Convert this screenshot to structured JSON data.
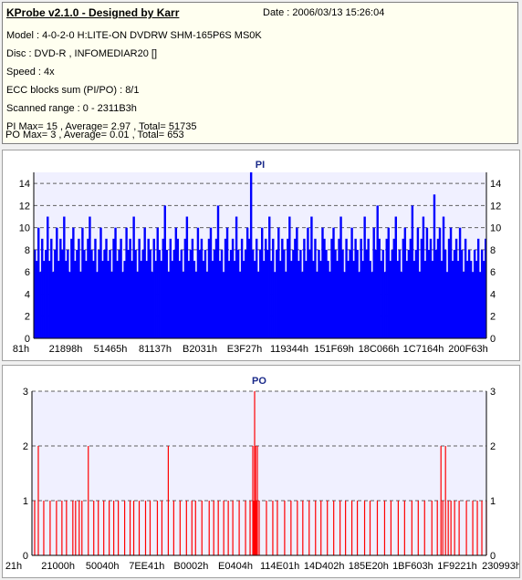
{
  "header": {
    "title": "KProbe v2.1.0 - Designed by Karr",
    "date": "Date : 2006/03/13 15:26:04",
    "lines": [
      "Model : 4-0-2-0 H:LITE-ON DVDRW SHM-165P6S MS0K",
      "Disc : DVD-R , INFOMEDIAR20 []",
      "Speed : 4x",
      "ECC blocks sum (PI/PO) : 8/1",
      "Scanned range : 0 - 2311B3h",
      "PI Max= 15 , Average= 2.97 , Total= 51735",
      "PO Max= 3 , Average= 0.01 , Total= 653"
    ]
  },
  "colors": {
    "pi": "#0000ff",
    "po": "#ff0000",
    "plot_bg": "#f0f0ff",
    "grid": "#606060",
    "title": "#1a2a8a"
  },
  "chart_data": [
    {
      "type": "bar",
      "title": "PI",
      "ylim": [
        0,
        15
      ],
      "yticks": [
        0,
        2,
        4,
        6,
        8,
        10,
        12,
        14
      ],
      "xtick_labels": [
        "81h",
        "21898h",
        "51465h",
        "81137h",
        "B2031h",
        "E3F27h",
        "119344h",
        "151F69h",
        "18C066h",
        "1C7164h",
        "200F63h"
      ],
      "grid": true,
      "max": 15,
      "average": 2.97,
      "total": 51735,
      "series": [
        {
          "values": [
            8,
            7,
            10,
            6,
            9,
            7,
            8,
            11,
            7,
            9,
            6,
            8,
            10,
            7,
            9,
            8,
            11,
            7,
            8,
            6,
            9,
            10,
            7,
            8,
            9,
            6,
            10,
            8,
            7,
            9,
            11,
            8,
            7,
            9,
            6,
            8,
            10,
            7,
            8,
            9,
            7,
            8,
            6,
            9,
            10,
            7,
            8,
            9,
            6,
            7,
            10,
            8,
            9,
            7,
            11,
            8,
            6,
            9,
            7,
            8,
            10,
            7,
            9,
            8,
            6,
            9,
            7,
            10,
            8,
            7,
            9,
            12,
            8,
            6,
            9,
            7,
            8,
            10,
            9,
            7,
            8,
            6,
            9,
            11,
            7,
            8,
            9,
            7,
            6,
            10,
            8,
            9,
            7,
            8,
            6,
            9,
            10,
            7,
            8,
            9,
            12,
            7,
            8,
            6,
            9,
            10,
            7,
            8,
            9,
            7,
            11,
            8,
            6,
            9,
            7,
            8,
            10,
            9,
            15,
            8,
            7,
            9,
            6,
            8,
            10,
            7,
            9,
            8,
            11,
            7,
            9,
            6,
            8,
            10,
            7,
            9,
            8,
            6,
            9,
            11,
            7,
            8,
            9,
            10,
            7,
            8,
            6,
            9,
            7,
            10,
            8,
            11,
            7,
            9,
            6,
            8,
            7,
            10,
            9,
            8,
            7,
            6,
            9,
            10,
            8,
            7,
            9,
            11,
            8,
            6,
            9,
            7,
            8,
            10,
            7,
            9,
            8,
            6,
            9,
            7,
            11,
            8,
            9,
            7,
            6,
            10,
            8,
            12,
            9,
            7,
            8,
            6,
            9,
            10,
            7,
            8,
            9,
            11,
            7,
            8,
            6,
            9,
            10,
            7,
            8,
            9,
            12,
            7,
            8,
            10,
            6,
            9,
            11,
            7,
            10,
            8,
            9,
            7,
            13,
            8,
            9,
            10,
            7,
            11,
            8,
            6,
            9,
            10,
            7,
            8,
            9,
            7,
            10,
            8,
            6,
            9,
            7,
            8,
            7,
            6,
            8,
            7,
            9,
            6,
            8,
            7,
            9
          ]
        }
      ]
    },
    {
      "type": "bar",
      "title": "PO",
      "ylim": [
        0,
        3
      ],
      "yticks": [
        0,
        1,
        2,
        3
      ],
      "xtick_labels": [
        "21h",
        "21000h",
        "50040h",
        "7EE41h",
        "B0002h",
        "E0404h",
        "114E01h",
        "14D402h",
        "185E20h",
        "1BF603h",
        "1F9221h",
        "230993h"
      ],
      "grid": true,
      "max": 3,
      "average": 0.01,
      "total": 653,
      "series": [
        {
          "x": [
            3,
            7,
            13,
            20,
            27,
            33,
            38,
            45,
            48,
            52,
            55,
            62,
            68,
            73,
            79,
            85,
            90,
            95,
            102,
            108,
            112,
            118,
            125,
            130,
            138,
            143,
            150,
            156,
            163,
            170,
            176,
            180,
            187,
            195,
            200,
            205,
            211,
            216,
            221,
            228,
            235,
            240,
            243,
            244,
            245,
            246,
            247,
            248,
            250,
            258,
            265,
            270,
            278,
            285,
            292,
            298,
            305,
            312,
            318,
            325,
            332,
            339,
            345,
            352,
            358,
            366,
            372,
            380,
            388,
            395,
            403,
            410,
            418,
            425,
            432,
            440,
            446,
            450,
            452,
            455,
            458,
            461,
            465,
            470,
            478,
            485,
            490,
            495,
            500
          ],
          "values": [
            1,
            2,
            1,
            1,
            1,
            1,
            1,
            1,
            1,
            1,
            1,
            2,
            1,
            1,
            1,
            1,
            1,
            1,
            1,
            1,
            1,
            1,
            1,
            1,
            1,
            1,
            2,
            1,
            1,
            1,
            1,
            1,
            1,
            1,
            1,
            1,
            1,
            1,
            1,
            1,
            1,
            1,
            2,
            1,
            3,
            2,
            1,
            2,
            1,
            1,
            1,
            1,
            1,
            1,
            1,
            1,
            1,
            1,
            1,
            1,
            1,
            1,
            1,
            1,
            1,
            1,
            1,
            1,
            1,
            1,
            1,
            1,
            1,
            1,
            1,
            1,
            1,
            2,
            1,
            2,
            1,
            1,
            1,
            1,
            1,
            1,
            1,
            1,
            1
          ]
        }
      ]
    }
  ]
}
